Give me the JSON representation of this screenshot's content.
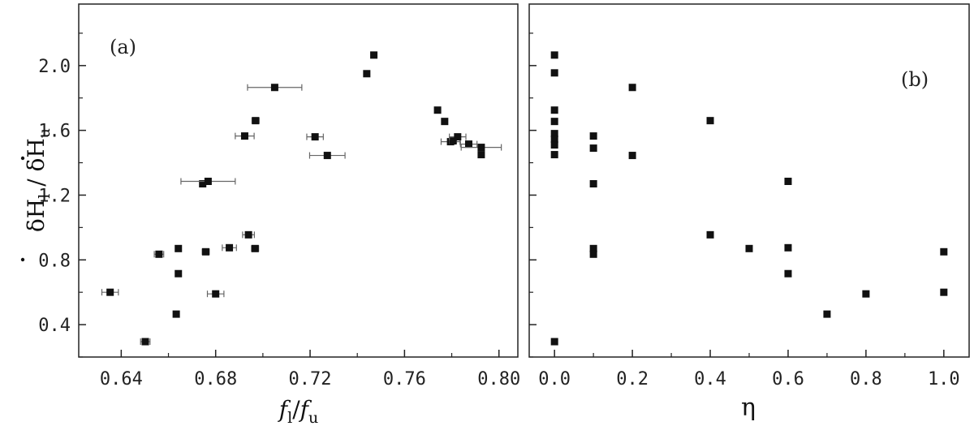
{
  "chart_data": [
    {
      "type": "scatter",
      "panel_label": "(a)",
      "xlabel_parts": {
        "num": "f",
        "num_sub": "l",
        "sep": "/",
        "den": "f",
        "den_sub": "u"
      },
      "ylabel_parts": {
        "num": "δH",
        "num_sub": "l",
        "sep": " / ",
        "den": "δH",
        "den_sub": "u"
      },
      "xlim": [
        0.622,
        0.808
      ],
      "ylim": [
        0.2,
        2.38
      ],
      "xticks": [
        0.64,
        0.68,
        0.72,
        0.76,
        0.8
      ],
      "xtick_labels": [
        "0.64",
        "0.68",
        "0.72",
        "0.76",
        "0.80"
      ],
      "yticks": [
        0.4,
        0.8,
        1.2,
        1.6,
        2.0
      ],
      "ytick_labels": [
        "0.4",
        "0.8",
        "1.2",
        "1.6",
        "2.0"
      ],
      "grid": false,
      "points": [
        {
          "x": 0.6633,
          "y": 0.465,
          "xerr": 0
        },
        {
          "x": 0.6353,
          "y": 0.6,
          "xerr": 0.0035
        },
        {
          "x": 0.6502,
          "y": 0.295,
          "xerr": 0.002
        },
        {
          "x": 0.656,
          "y": 0.835,
          "xerr": 0.002
        },
        {
          "x": 0.6642,
          "y": 0.87,
          "xerr": 0
        },
        {
          "x": 0.6642,
          "y": 0.715,
          "xerr": 0
        },
        {
          "x": 0.6758,
          "y": 0.85,
          "xerr": 0.0015
        },
        {
          "x": 0.68,
          "y": 0.59,
          "xerr": 0.0035
        },
        {
          "x": 0.6858,
          "y": 0.875,
          "xerr": 0.003
        },
        {
          "x": 0.6939,
          "y": 0.955,
          "xerr": 0.0025
        },
        {
          "x": 0.6967,
          "y": 0.87,
          "xerr": 0.0015
        },
        {
          "x": 0.6745,
          "y": 1.27,
          "xerr": 0
        },
        {
          "x": 0.6768,
          "y": 1.285,
          "xerr": 0.0115
        },
        {
          "x": 0.6923,
          "y": 1.565,
          "xerr": 0.004
        },
        {
          "x": 0.6969,
          "y": 1.66,
          "xerr": 0.0015
        },
        {
          "x": 0.705,
          "y": 1.865,
          "xerr": 0.0115
        },
        {
          "x": 0.7221,
          "y": 1.56,
          "xerr": 0.0035
        },
        {
          "x": 0.7273,
          "y": 1.445,
          "xerr": 0.0075
        },
        {
          "x": 0.744,
          "y": 1.95,
          "xerr": 0
        },
        {
          "x": 0.747,
          "y": 2.065,
          "xerr": 0
        },
        {
          "x": 0.774,
          "y": 1.725,
          "xerr": 0
        },
        {
          "x": 0.777,
          "y": 1.655,
          "xerr": 0.001
        },
        {
          "x": 0.7795,
          "y": 1.53,
          "xerr": 0.004
        },
        {
          "x": 0.7805,
          "y": 1.535,
          "xerr": 0.0015
        },
        {
          "x": 0.7825,
          "y": 1.56,
          "xerr": 0.0035
        },
        {
          "x": 0.7872,
          "y": 1.515,
          "xerr": 0.0035
        },
        {
          "x": 0.7925,
          "y": 1.495,
          "xerr": 0.0085
        },
        {
          "x": 0.7925,
          "y": 1.45,
          "xerr": 0
        }
      ]
    },
    {
      "type": "scatter",
      "panel_label": "(b)",
      "xlabel": "η",
      "xlim": [
        -0.065,
        1.065
      ],
      "ylim": [
        0.2,
        2.38
      ],
      "xticks": [
        0.0,
        0.2,
        0.4,
        0.6,
        0.8,
        1.0
      ],
      "xtick_labels": [
        "0.0",
        "0.2",
        "0.4",
        "0.6",
        "0.8",
        "1.0"
      ],
      "grid": false,
      "points": [
        {
          "x": 0.0,
          "y": 2.065
        },
        {
          "x": 0.0,
          "y": 1.955
        },
        {
          "x": 0.0,
          "y": 1.725
        },
        {
          "x": 0.0,
          "y": 1.655
        },
        {
          "x": 0.0,
          "y": 1.58
        },
        {
          "x": 0.0,
          "y": 1.545
        },
        {
          "x": 0.0,
          "y": 1.51
        },
        {
          "x": 0.0,
          "y": 1.45
        },
        {
          "x": 0.0,
          "y": 0.295
        },
        {
          "x": 0.1,
          "y": 1.565
        },
        {
          "x": 0.1,
          "y": 1.49
        },
        {
          "x": 0.1,
          "y": 1.27
        },
        {
          "x": 0.1,
          "y": 0.87
        },
        {
          "x": 0.1,
          "y": 0.835
        },
        {
          "x": 0.2,
          "y": 1.865
        },
        {
          "x": 0.2,
          "y": 1.445
        },
        {
          "x": 0.4,
          "y": 1.66
        },
        {
          "x": 0.4,
          "y": 0.955
        },
        {
          "x": 0.5,
          "y": 0.87
        },
        {
          "x": 0.6,
          "y": 1.285
        },
        {
          "x": 0.6,
          "y": 0.875
        },
        {
          "x": 0.6,
          "y": 0.715
        },
        {
          "x": 0.7,
          "y": 0.465
        },
        {
          "x": 0.8,
          "y": 0.59
        },
        {
          "x": 1.0,
          "y": 0.85
        },
        {
          "x": 1.0,
          "y": 0.6
        }
      ]
    }
  ]
}
